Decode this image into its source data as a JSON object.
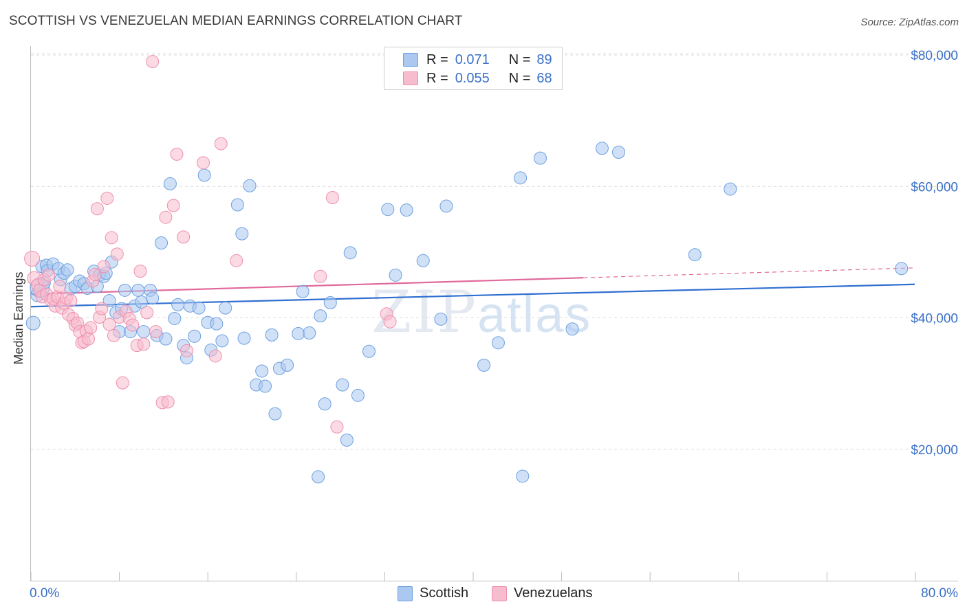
{
  "title": "SCOTTISH VS VENEZUELAN MEDIAN EARNINGS CORRELATION CHART",
  "source": "Source: ZipAtlas.com",
  "watermark": {
    "zip": "ZIP",
    "atlas": "atlas"
  },
  "legend": {
    "rows": [
      {
        "r_label": "R =",
        "r_value": "0.071",
        "n_label": "N =",
        "n_value": "89"
      },
      {
        "r_label": "R =",
        "r_value": "0.055",
        "n_label": "N =",
        "n_value": "68"
      }
    ]
  },
  "bottom_legend": {
    "scottish": "Scottish",
    "venezuelans": "Venezuelans"
  },
  "colors": {
    "scottish_fill": "#aac8f0",
    "scottish_stroke": "#6c9fe0",
    "scottish_line": "#2f6fd1",
    "venezuelan_fill": "#f7bccd",
    "venezuelan_stroke": "#ee8fae",
    "venezuelan_line": "#e0689a",
    "axis_text": "#3a70c8"
  },
  "chart_data": {
    "type": "scatter",
    "title": "SCOTTISH VS VENEZUELAN MEDIAN EARNINGS CORRELATION CHART",
    "xlabel": "",
    "ylabel": "Median Earnings",
    "xlim": [
      0,
      80
    ],
    "ylim": [
      0,
      82500
    ],
    "x_tick_labels": [
      "0.0%",
      "80.0%"
    ],
    "y_tick_labels": [
      "$20,000",
      "$40,000",
      "$60,000",
      "$80,000"
    ],
    "y_ticks": [
      20000,
      40000,
      60000,
      80000
    ],
    "grid": true,
    "legend_position": "top-center",
    "series": [
      {
        "name": "Scottish",
        "r": 0.071,
        "n": 89,
        "trend": {
          "x": [
            0,
            80
          ],
          "y": [
            41700,
            45100
          ]
        },
        "points": [
          [
            0.2,
            39200,
            10
          ],
          [
            0.6,
            43500,
            10
          ],
          [
            0.8,
            44600,
            14
          ],
          [
            1.0,
            47800,
            9
          ],
          [
            1.2,
            45300,
            9
          ],
          [
            1.4,
            48000,
            9
          ],
          [
            1.5,
            47200,
            9
          ],
          [
            2.0,
            48200,
            9
          ],
          [
            2.5,
            47500,
            9
          ],
          [
            2.7,
            45800,
            9
          ],
          [
            3.0,
            46800,
            9
          ],
          [
            3.3,
            47300,
            9
          ],
          [
            3.6,
            44400,
            9
          ],
          [
            4.0,
            44800,
            9
          ],
          [
            4.4,
            45600,
            9
          ],
          [
            4.8,
            45200,
            9
          ],
          [
            5.1,
            44500,
            9
          ],
          [
            5.7,
            47100,
            9
          ],
          [
            6.0,
            44800,
            9
          ],
          [
            6.2,
            46500,
            9
          ],
          [
            6.6,
            46300,
            9
          ],
          [
            6.8,
            46800,
            9
          ],
          [
            7.1,
            42600,
            9
          ],
          [
            7.3,
            48500,
            9
          ],
          [
            7.7,
            40800,
            9
          ],
          [
            8.0,
            37900,
            9
          ],
          [
            8.2,
            41400,
            9
          ],
          [
            8.5,
            44200,
            9
          ],
          [
            9.0,
            37900,
            9
          ],
          [
            9.4,
            41800,
            9
          ],
          [
            9.7,
            44200,
            9
          ],
          [
            10.0,
            42400,
            9
          ],
          [
            10.2,
            37900,
            9
          ],
          [
            10.8,
            44200,
            9
          ],
          [
            11.0,
            43000,
            9
          ],
          [
            11.4,
            37300,
            9
          ],
          [
            11.8,
            51400,
            9
          ],
          [
            12.2,
            36800,
            9
          ],
          [
            12.6,
            60400,
            9
          ],
          [
            13.0,
            39900,
            9
          ],
          [
            13.3,
            42000,
            9
          ],
          [
            13.8,
            35800,
            9
          ],
          [
            14.1,
            33900,
            9
          ],
          [
            14.4,
            41800,
            9
          ],
          [
            14.8,
            37200,
            9
          ],
          [
            15.2,
            41500,
            9
          ],
          [
            15.7,
            61700,
            9
          ],
          [
            16.0,
            39300,
            9
          ],
          [
            16.3,
            35100,
            9
          ],
          [
            16.8,
            39100,
            9
          ],
          [
            17.3,
            36500,
            9
          ],
          [
            17.6,
            41500,
            9
          ],
          [
            18.7,
            57200,
            9
          ],
          [
            19.1,
            52800,
            9
          ],
          [
            19.3,
            36900,
            9
          ],
          [
            19.8,
            60100,
            9
          ],
          [
            20.4,
            29800,
            9
          ],
          [
            20.9,
            31900,
            9
          ],
          [
            21.2,
            29600,
            9
          ],
          [
            21.8,
            37400,
            9
          ],
          [
            22.1,
            25400,
            9
          ],
          [
            22.5,
            32300,
            9
          ],
          [
            23.2,
            32800,
            9
          ],
          [
            24.2,
            37600,
            9
          ],
          [
            24.6,
            44000,
            9
          ],
          [
            25.2,
            37700,
            9
          ],
          [
            26.0,
            15800,
            9
          ],
          [
            26.2,
            40300,
            9
          ],
          [
            26.6,
            26900,
            9
          ],
          [
            27.1,
            42300,
            9
          ],
          [
            28.2,
            29800,
            9
          ],
          [
            28.6,
            21400,
            9
          ],
          [
            28.9,
            49900,
            9
          ],
          [
            29.6,
            28200,
            9
          ],
          [
            30.6,
            34900,
            9
          ],
          [
            32.3,
            56500,
            9
          ],
          [
            33.0,
            46500,
            9
          ],
          [
            34.0,
            56400,
            9
          ],
          [
            35.5,
            48700,
            9
          ],
          [
            37.1,
            39800,
            9
          ],
          [
            37.6,
            57000,
            9
          ],
          [
            41.0,
            32800,
            9
          ],
          [
            42.3,
            36200,
            9
          ],
          [
            44.3,
            61300,
            9
          ],
          [
            44.5,
            15900,
            9
          ],
          [
            46.1,
            64300,
            9
          ],
          [
            49.0,
            38300,
            9
          ],
          [
            51.7,
            65800,
            9
          ],
          [
            53.2,
            65200,
            9
          ],
          [
            60.1,
            49600,
            9
          ],
          [
            63.3,
            59600,
            9
          ],
          [
            78.8,
            47500,
            9
          ]
        ]
      },
      {
        "name": "Venezuelans",
        "r": 0.055,
        "n": 68,
        "trend": {
          "x": [
            0,
            80
          ],
          "y": [
            43600,
            47600
          ]
        },
        "trend_solid_until_x": 50,
        "points": [
          [
            0.1,
            49000,
            11
          ],
          [
            0.3,
            46000,
            10
          ],
          [
            0.6,
            45000,
            9
          ],
          [
            0.8,
            44200,
            9
          ],
          [
            1.0,
            43200,
            9
          ],
          [
            1.2,
            45800,
            9
          ],
          [
            1.4,
            43600,
            9
          ],
          [
            1.6,
            46500,
            9
          ],
          [
            1.8,
            42700,
            9
          ],
          [
            2.0,
            42900,
            9
          ],
          [
            2.2,
            41800,
            9
          ],
          [
            2.4,
            43200,
            9
          ],
          [
            2.6,
            44800,
            9
          ],
          [
            2.8,
            41500,
            9
          ],
          [
            3.0,
            42200,
            9
          ],
          [
            3.2,
            43000,
            9
          ],
          [
            3.4,
            40500,
            9
          ],
          [
            3.6,
            42600,
            9
          ],
          [
            3.8,
            39900,
            9
          ],
          [
            4.0,
            38900,
            9
          ],
          [
            4.2,
            39200,
            9
          ],
          [
            4.4,
            37900,
            9
          ],
          [
            4.6,
            36200,
            9
          ],
          [
            4.8,
            36400,
            9
          ],
          [
            5.0,
            38000,
            9
          ],
          [
            5.2,
            36800,
            9
          ],
          [
            5.4,
            38500,
            9
          ],
          [
            5.6,
            45600,
            9
          ],
          [
            5.8,
            46600,
            9
          ],
          [
            6.0,
            56600,
            9
          ],
          [
            6.2,
            40100,
            9
          ],
          [
            6.4,
            41400,
            9
          ],
          [
            6.6,
            47800,
            9
          ],
          [
            6.9,
            58200,
            9
          ],
          [
            7.1,
            39000,
            9
          ],
          [
            7.3,
            52200,
            9
          ],
          [
            7.5,
            37300,
            9
          ],
          [
            7.8,
            49700,
            9
          ],
          [
            8.0,
            40100,
            9
          ],
          [
            8.3,
            30100,
            9
          ],
          [
            8.6,
            41000,
            9
          ],
          [
            8.9,
            39900,
            9
          ],
          [
            9.2,
            38900,
            9
          ],
          [
            9.6,
            35800,
            9
          ],
          [
            9.9,
            47100,
            9
          ],
          [
            10.2,
            36000,
            9
          ],
          [
            10.5,
            40800,
            9
          ],
          [
            11.0,
            79000,
            9
          ],
          [
            11.3,
            37900,
            9
          ],
          [
            11.9,
            27100,
            9
          ],
          [
            12.2,
            55300,
            9
          ],
          [
            12.4,
            27200,
            9
          ],
          [
            12.9,
            57100,
            9
          ],
          [
            13.2,
            64900,
            9
          ],
          [
            13.8,
            52300,
            9
          ],
          [
            14.1,
            35000,
            9
          ],
          [
            15.6,
            63600,
            9
          ],
          [
            16.7,
            34200,
            9
          ],
          [
            17.2,
            66500,
            9
          ],
          [
            18.6,
            48700,
            9
          ],
          [
            26.2,
            46300,
            9
          ],
          [
            27.3,
            58300,
            9
          ],
          [
            27.7,
            23400,
            9
          ],
          [
            32.2,
            40600,
            9
          ],
          [
            32.5,
            39400,
            9
          ]
        ]
      }
    ]
  }
}
